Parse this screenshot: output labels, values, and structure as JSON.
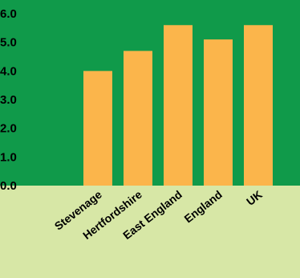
{
  "colors": {
    "plot_background": "#109a4a",
    "page_background": "#d7e7a6",
    "bar": "#fbb54b",
    "text": "#000000"
  },
  "chart_data": {
    "type": "bar",
    "categories": [
      "Stevenage",
      "Hertfordshire",
      "East England",
      "England",
      "UK"
    ],
    "values": [
      4.0,
      4.7,
      5.6,
      5.1,
      5.6
    ],
    "ylim": [
      0,
      6.0
    ],
    "yticks": [
      "0.0",
      "1.0",
      "2.0",
      "3.0",
      "4.0",
      "5.0",
      "6.0"
    ],
    "grid": false,
    "legend": "none"
  }
}
